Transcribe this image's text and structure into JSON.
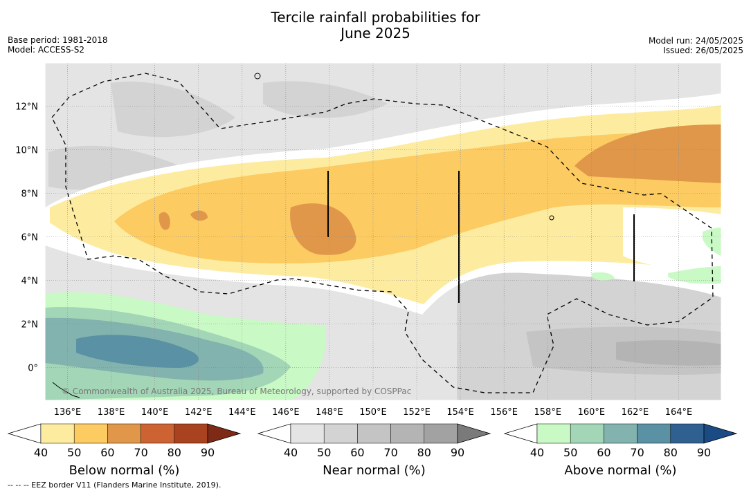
{
  "title_line1": "Tercile rainfall probabilities for",
  "title_line2": "June 2025",
  "base_period": "Base period: 1981-2018",
  "model": "Model: ACCESS-S2",
  "model_run": "Model run: 24/05/2025",
  "issued": "Issued: 26/05/2025",
  "copyright": "© Commonwealth of Australia 2025, Bureau of Meteorology, supported by COSPPac",
  "footnote": "--  --  -- EEZ border V11 (Flanders Marine Institute, 2019).",
  "map": {
    "x_ticks": [
      "136°E",
      "138°E",
      "140°E",
      "142°E",
      "144°E",
      "146°E",
      "148°E",
      "150°E",
      "152°E",
      "154°E",
      "156°E",
      "158°E",
      "160°E",
      "162°E",
      "164°E"
    ],
    "y_ticks": [
      "12°N",
      "10°N",
      "8°N",
      "6°N",
      "4°N",
      "2°N",
      "0°"
    ]
  },
  "colorbars": [
    {
      "label": "Below normal (%)",
      "ticks": [
        "40",
        "50",
        "60",
        "70",
        "80",
        "90"
      ],
      "colors": [
        "#ffffff",
        "#fdeca0",
        "#fccb62",
        "#e0974a",
        "#cd6232",
        "#a9421f",
        "#7f2a16"
      ]
    },
    {
      "label": "Near normal (%)",
      "ticks": [
        "40",
        "50",
        "60",
        "70",
        "80",
        "90"
      ],
      "colors": [
        "#ffffff",
        "#e4e4e4",
        "#d3d3d3",
        "#c4c4c4",
        "#b4b4b4",
        "#a2a2a2",
        "#7a7a7a"
      ]
    },
    {
      "label": "Above normal (%)",
      "ticks": [
        "40",
        "50",
        "60",
        "70",
        "80",
        "90"
      ],
      "colors": [
        "#ffffff",
        "#c9f9c4",
        "#a3d6b6",
        "#82b3ae",
        "#5b91a4",
        "#2f6090",
        "#1a4b84"
      ]
    }
  ]
}
